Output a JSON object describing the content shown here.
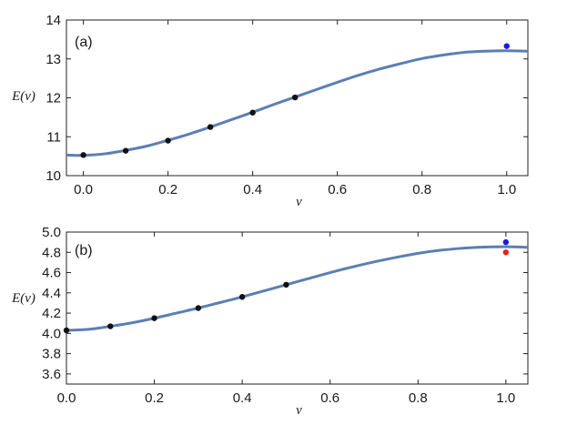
{
  "chart_data": [
    {
      "type": "line",
      "panel_label": "(a)",
      "ylabel": "E(ν)",
      "xlabel": "ν",
      "xlim": [
        -0.04,
        1.05
      ],
      "ylim": [
        10,
        14
      ],
      "xticks": [
        0.0,
        0.2,
        0.4,
        0.6,
        0.8,
        1.0
      ],
      "xtick_labels": [
        "0.0",
        "0.2",
        "0.4",
        "0.6",
        "0.8",
        "1.0"
      ],
      "yticks": [
        10,
        11,
        12,
        13,
        14
      ],
      "ytick_labels": [
        "10",
        "11",
        "12",
        "13",
        "14"
      ],
      "curve": {
        "color": "#5b7fb4",
        "x": [
          -0.04,
          0.0,
          0.05,
          0.1,
          0.15,
          0.2,
          0.25,
          0.3,
          0.35,
          0.4,
          0.45,
          0.5,
          0.55,
          0.6,
          0.65,
          0.7,
          0.75,
          0.8,
          0.85,
          0.9,
          0.95,
          1.0,
          1.05
        ],
        "y": [
          10.53,
          10.52,
          10.56,
          10.65,
          10.76,
          10.91,
          11.07,
          11.25,
          11.44,
          11.63,
          11.83,
          12.02,
          12.21,
          12.4,
          12.58,
          12.74,
          12.88,
          13.01,
          13.1,
          13.17,
          13.2,
          13.21,
          13.2
        ]
      },
      "series": [
        {
          "color": "#111111",
          "x": [
            0.0,
            0.1,
            0.2,
            0.3,
            0.4,
            0.5
          ],
          "y": [
            10.53,
            10.64,
            10.9,
            11.25,
            11.62,
            12.01
          ]
        },
        {
          "color": "#1a1ae6",
          "x": [
            1.0
          ],
          "y": [
            13.33
          ]
        }
      ]
    },
    {
      "type": "line",
      "panel_label": "(b)",
      "ylabel": "E(ν)",
      "xlabel": "ν",
      "xlim": [
        0.0,
        1.05
      ],
      "ylim": [
        3.5,
        5.0
      ],
      "xticks": [
        0.0,
        0.2,
        0.4,
        0.6,
        0.8,
        1.0
      ],
      "xtick_labels": [
        "0.0",
        "0.2",
        "0.4",
        "0.6",
        "0.8",
        "1.0"
      ],
      "yticks": [
        3.6,
        3.8,
        4.0,
        4.2,
        4.4,
        4.6,
        4.8,
        5.0
      ],
      "ytick_labels": [
        "3.6",
        "3.8",
        "4.0",
        "4.2",
        "4.4",
        "4.6",
        "4.8",
        "5.0"
      ],
      "curve": {
        "color": "#5b7fb4",
        "x": [
          0.0,
          0.05,
          0.1,
          0.15,
          0.2,
          0.25,
          0.3,
          0.35,
          0.4,
          0.45,
          0.5,
          0.55,
          0.6,
          0.65,
          0.7,
          0.75,
          0.8,
          0.85,
          0.9,
          0.95,
          1.0,
          1.05
        ],
        "y": [
          4.03,
          4.04,
          4.07,
          4.105,
          4.15,
          4.2,
          4.25,
          4.305,
          4.36,
          4.42,
          4.48,
          4.54,
          4.6,
          4.655,
          4.705,
          4.75,
          4.79,
          4.82,
          4.84,
          4.852,
          4.855,
          4.85
        ]
      },
      "series": [
        {
          "color": "#111111",
          "x": [
            0.0,
            0.1,
            0.2,
            0.3,
            0.4,
            0.5
          ],
          "y": [
            4.03,
            4.07,
            4.15,
            4.25,
            4.36,
            4.48
          ]
        },
        {
          "color": "#1a1ae6",
          "x": [
            1.0
          ],
          "y": [
            4.9
          ]
        },
        {
          "color": "#e62020",
          "x": [
            1.0
          ],
          "y": [
            4.8
          ]
        }
      ]
    }
  ]
}
